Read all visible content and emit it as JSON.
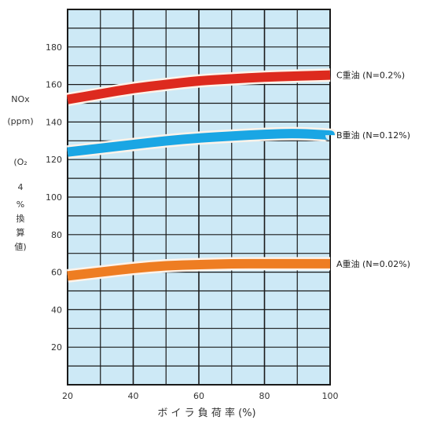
{
  "chart_data": {
    "type": "line",
    "xlabel": "ボ イ ラ 負 荷 率 (%)",
    "ylabel_lines": [
      "NOx",
      "(ppm)",
      "(O₂",
      "4",
      "%",
      "換",
      "算",
      "値)"
    ],
    "xlim": [
      20,
      100
    ],
    "ylim": [
      0,
      200
    ],
    "x_ticks": [
      20,
      40,
      60,
      80,
      100
    ],
    "y_ticks": [
      20,
      40,
      60,
      80,
      100,
      120,
      140,
      160,
      180
    ],
    "grid": true,
    "series": [
      {
        "name": "C重油 (N=0.2%)",
        "color": "#dd2a1e",
        "x": [
          20,
          30,
          40,
          50,
          60,
          70,
          80,
          90,
          100
        ],
        "values": [
          152,
          155,
          158,
          160,
          162,
          163,
          164,
          164.5,
          165
        ]
      },
      {
        "name": "B重油 (N=0.12%)",
        "color": "#1aa6e4",
        "x": [
          20,
          30,
          40,
          50,
          60,
          70,
          80,
          90,
          100
        ],
        "values": [
          124,
          126,
          128,
          130,
          131.5,
          132.5,
          133.5,
          134,
          133
        ]
      },
      {
        "name": "A重油 (N=0.02%)",
        "color": "#ee7d22",
        "x": [
          20,
          30,
          40,
          50,
          60,
          70,
          80,
          90,
          100
        ],
        "values": [
          58,
          60,
          62,
          63.5,
          64,
          64.5,
          64.5,
          64.5,
          64.5
        ]
      }
    ]
  },
  "colors": {
    "plot_background": "#cde9f6",
    "grid": "#1a1a1a"
  }
}
